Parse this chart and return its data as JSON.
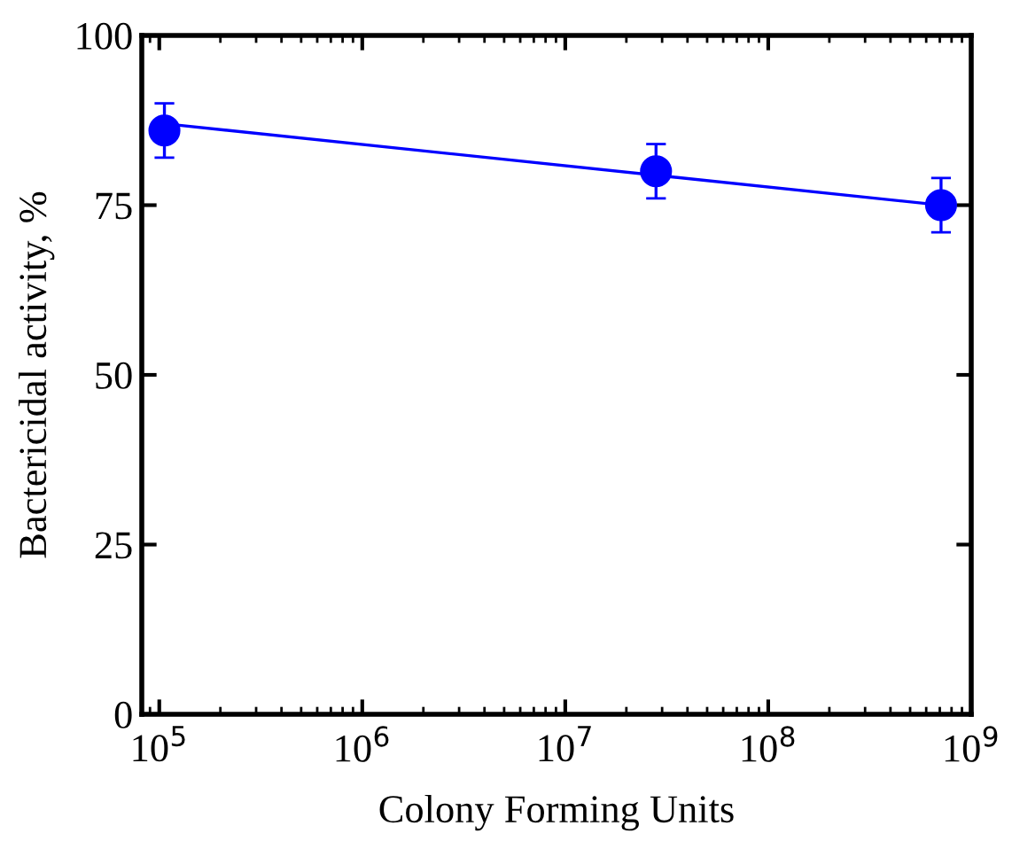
{
  "chart_data": {
    "type": "scatter",
    "xlabel": "Colony Forming Units",
    "ylabel": "Bactericidal activity, %",
    "log": "x",
    "grid": false,
    "legend": false,
    "series": [
      {
        "color": "#0000ff",
        "marker": "circle",
        "x": [
          106000,
          28000000,
          710000000
        ],
        "values": [
          86,
          80,
          75
        ],
        "errors": [
          4,
          4,
          4
        ]
      },
      {
        "type": "line",
        "color": "#0000ff",
        "line_style": "solid",
        "x": [
          106000,
          710000000
        ],
        "values": [
          87,
          75
        ]
      }
    ],
    "xlim": [
      82000,
      1000000000
    ],
    "xticks": [
      {
        "value": 100000,
        "label": "10$^{5}$"
      },
      {
        "value": 1000000,
        "label": "10$^{6}$"
      },
      {
        "value": 10000000,
        "label": "10$^{7}$"
      },
      {
        "value": 100000000,
        "label": "10$^{8}$"
      },
      {
        "value": 1000000000,
        "label": "10$^{9}$"
      }
    ],
    "ylim": [
      0,
      100
    ],
    "yticks": [
      0,
      25,
      50,
      75,
      100
    ]
  }
}
